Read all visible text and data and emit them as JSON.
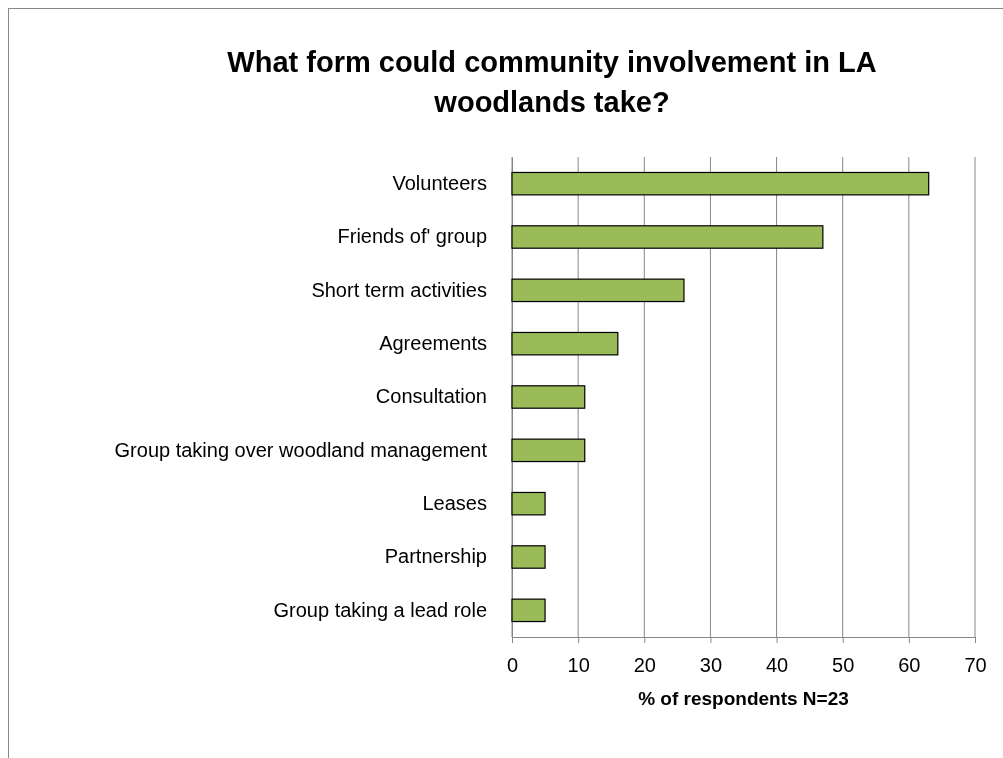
{
  "chart_data": {
    "type": "bar",
    "orientation": "horizontal",
    "title": "What form could community involvement in LA woodlands take?",
    "xlabel": "% of respondents N=23",
    "categories": [
      "Volunteers",
      "Friends of' group",
      "Short term activities",
      "Agreements",
      "Consultation",
      "Group taking over woodland management",
      "Leases",
      "Partnership",
      "Group taking a lead role"
    ],
    "values": [
      63,
      47,
      26,
      16,
      11,
      11,
      5,
      5,
      5
    ],
    "color": "#9bbb59",
    "xlim": [
      0,
      70
    ],
    "xticks": [
      0,
      10,
      20,
      30,
      40,
      50,
      60,
      70
    ],
    "grid": "x"
  }
}
